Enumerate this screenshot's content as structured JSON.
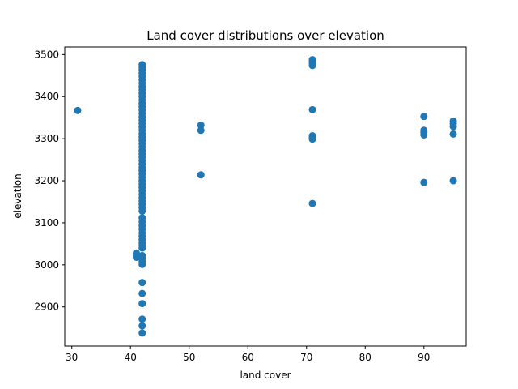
{
  "chart_data": {
    "type": "scatter",
    "title": "Land cover distributions over elevation",
    "xlabel": "land cover",
    "ylabel": "elevation",
    "xlim": [
      28.8,
      97.2
    ],
    "ylim": [
      2807,
      3518
    ],
    "xticks": [
      30,
      40,
      50,
      60,
      70,
      80,
      90
    ],
    "yticks": [
      2900,
      3000,
      3100,
      3200,
      3300,
      3400,
      3500
    ],
    "grid": false,
    "point_color": "#1f77b4",
    "points": [
      {
        "x": 31,
        "y": 3367
      },
      {
        "x": 41,
        "y": 3028
      },
      {
        "x": 41,
        "y": 3023
      },
      {
        "x": 41,
        "y": 3018
      },
      {
        "x": 42,
        "y": 2838
      },
      {
        "x": 42,
        "y": 2855
      },
      {
        "x": 42,
        "y": 2871
      },
      {
        "x": 42,
        "y": 2908
      },
      {
        "x": 42,
        "y": 2932
      },
      {
        "x": 42,
        "y": 2958
      },
      {
        "x": 42,
        "y": 3001
      },
      {
        "x": 42,
        "y": 3008
      },
      {
        "x": 42,
        "y": 3015
      },
      {
        "x": 42,
        "y": 3022
      },
      {
        "x": 42,
        "y": 3040
      },
      {
        "x": 42,
        "y": 3046
      },
      {
        "x": 42,
        "y": 3052
      },
      {
        "x": 42,
        "y": 3060
      },
      {
        "x": 42,
        "y": 3068
      },
      {
        "x": 42,
        "y": 3076
      },
      {
        "x": 42,
        "y": 3085
      },
      {
        "x": 42,
        "y": 3093
      },
      {
        "x": 42,
        "y": 3102
      },
      {
        "x": 42,
        "y": 3112
      },
      {
        "x": 42,
        "y": 3128
      },
      {
        "x": 42,
        "y": 3136
      },
      {
        "x": 42,
        "y": 3144
      },
      {
        "x": 42,
        "y": 3152
      },
      {
        "x": 42,
        "y": 3160
      },
      {
        "x": 42,
        "y": 3168
      },
      {
        "x": 42,
        "y": 3176
      },
      {
        "x": 42,
        "y": 3184
      },
      {
        "x": 42,
        "y": 3192
      },
      {
        "x": 42,
        "y": 3200
      },
      {
        "x": 42,
        "y": 3208
      },
      {
        "x": 42,
        "y": 3216
      },
      {
        "x": 42,
        "y": 3224
      },
      {
        "x": 42,
        "y": 3232
      },
      {
        "x": 42,
        "y": 3240
      },
      {
        "x": 42,
        "y": 3248
      },
      {
        "x": 42,
        "y": 3256
      },
      {
        "x": 42,
        "y": 3264
      },
      {
        "x": 42,
        "y": 3272
      },
      {
        "x": 42,
        "y": 3280
      },
      {
        "x": 42,
        "y": 3288
      },
      {
        "x": 42,
        "y": 3296
      },
      {
        "x": 42,
        "y": 3304
      },
      {
        "x": 42,
        "y": 3312
      },
      {
        "x": 42,
        "y": 3320
      },
      {
        "x": 42,
        "y": 3328
      },
      {
        "x": 42,
        "y": 3336
      },
      {
        "x": 42,
        "y": 3344
      },
      {
        "x": 42,
        "y": 3352
      },
      {
        "x": 42,
        "y": 3360
      },
      {
        "x": 42,
        "y": 3368
      },
      {
        "x": 42,
        "y": 3376
      },
      {
        "x": 42,
        "y": 3384
      },
      {
        "x": 42,
        "y": 3392
      },
      {
        "x": 42,
        "y": 3400
      },
      {
        "x": 42,
        "y": 3408
      },
      {
        "x": 42,
        "y": 3416
      },
      {
        "x": 42,
        "y": 3424
      },
      {
        "x": 42,
        "y": 3432
      },
      {
        "x": 42,
        "y": 3440
      },
      {
        "x": 42,
        "y": 3448
      },
      {
        "x": 42,
        "y": 3456
      },
      {
        "x": 42,
        "y": 3464
      },
      {
        "x": 42,
        "y": 3470
      },
      {
        "x": 42,
        "y": 3476
      },
      {
        "x": 52,
        "y": 3332
      },
      {
        "x": 52,
        "y": 3320
      },
      {
        "x": 52,
        "y": 3214
      },
      {
        "x": 71,
        "y": 3488
      },
      {
        "x": 71,
        "y": 3484
      },
      {
        "x": 71,
        "y": 3479
      },
      {
        "x": 71,
        "y": 3474
      },
      {
        "x": 71,
        "y": 3369
      },
      {
        "x": 71,
        "y": 3307
      },
      {
        "x": 71,
        "y": 3303
      },
      {
        "x": 71,
        "y": 3299
      },
      {
        "x": 71,
        "y": 3146
      },
      {
        "x": 90,
        "y": 3353
      },
      {
        "x": 90,
        "y": 3320
      },
      {
        "x": 90,
        "y": 3315
      },
      {
        "x": 90,
        "y": 3309
      },
      {
        "x": 90,
        "y": 3196
      },
      {
        "x": 95,
        "y": 3342
      },
      {
        "x": 95,
        "y": 3336
      },
      {
        "x": 95,
        "y": 3329
      },
      {
        "x": 95,
        "y": 3311
      },
      {
        "x": 95,
        "y": 3200
      }
    ]
  }
}
